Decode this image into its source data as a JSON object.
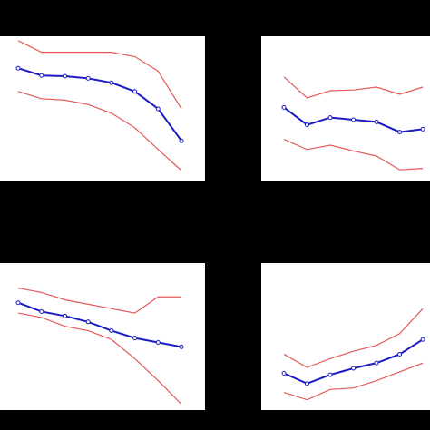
{
  "chart_data": [
    {
      "type": "line",
      "x": [
        0,
        1,
        2,
        3,
        4,
        5,
        6,
        7
      ],
      "xlim": [
        -0.78,
        8.01
      ],
      "ylim": [
        0,
        100
      ],
      "series": [
        {
          "color": "#e35a5a",
          "values": [
            97,
            89,
            89,
            89,
            89,
            86,
            76,
            50
          ]
        },
        {
          "color": "#1c1cc4",
          "marker": true,
          "values": [
            78,
            73,
            72.5,
            71,
            68,
            62,
            50,
            28
          ]
        },
        {
          "color": "#e35a5a",
          "values": [
            62,
            57,
            56,
            53,
            47,
            37,
            22,
            7.5
          ]
        }
      ]
    },
    {
      "type": "line",
      "x": [
        0,
        1,
        2,
        3,
        4,
        5,
        6
      ],
      "xlim": [
        -0.98,
        6.31
      ],
      "ylim": [
        0,
        100
      ],
      "series": [
        {
          "color": "#e35a5a",
          "values": [
            72,
            57.5,
            62.5,
            63,
            65,
            60,
            65
          ]
        },
        {
          "color": "#1c1cc4",
          "marker": true,
          "values": [
            51,
            39,
            44,
            42.5,
            41,
            34,
            36
          ]
        },
        {
          "color": "#e35a5a",
          "values": [
            29,
            22,
            25,
            21,
            17.5,
            8,
            9
          ]
        }
      ]
    },
    {
      "type": "line",
      "x": [
        0,
        1,
        2,
        3,
        4,
        5,
        6,
        7
      ],
      "xlim": [
        -0.78,
        8.01
      ],
      "ylim": [
        0,
        100
      ],
      "series": [
        {
          "color": "#e35a5a",
          "values": [
            83,
            80,
            75,
            72,
            69,
            66,
            77,
            77
          ]
        },
        {
          "color": "#1c1cc4",
          "marker": true,
          "values": [
            73,
            67,
            64,
            60,
            54,
            49,
            46,
            43
          ]
        },
        {
          "color": "#e35a5a",
          "values": [
            66,
            63,
            57,
            54,
            48,
            35,
            20,
            4
          ]
        }
      ]
    },
    {
      "type": "line",
      "x": [
        0,
        1,
        2,
        3,
        4,
        5,
        6
      ],
      "xlim": [
        -0.98,
        6.31
      ],
      "ylim": [
        0,
        100
      ],
      "series": [
        {
          "color": "#e35a5a",
          "values": [
            38,
            29,
            35,
            40,
            44,
            52,
            69
          ]
        },
        {
          "color": "#1c1cc4",
          "marker": true,
          "values": [
            25,
            18,
            24,
            28.4,
            32,
            38,
            48
          ]
        },
        {
          "color": "#e35a5a",
          "values": [
            12,
            7,
            14,
            15,
            20,
            26,
            32
          ]
        }
      ]
    }
  ]
}
